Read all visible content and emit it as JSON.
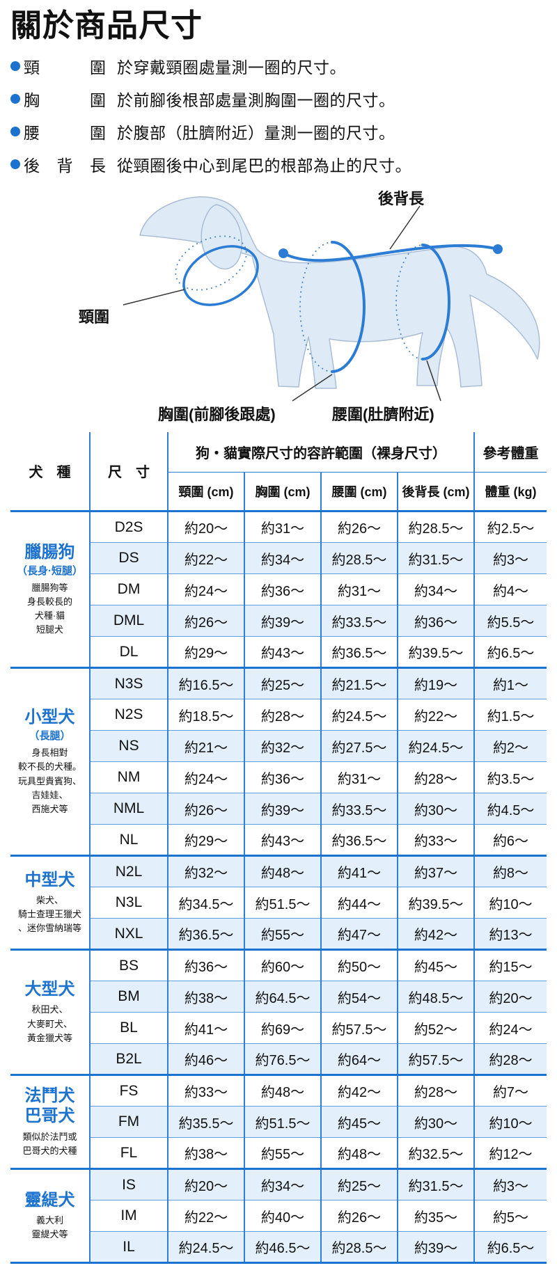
{
  "page": {
    "title": "關於商品尺寸"
  },
  "colors": {
    "accent": "#1b72cf",
    "table_line": "#2e7fd6",
    "row_shade": "#e3f0fb",
    "dog_fill": "#dfeaf7",
    "dog_outline": "#a9bdd4",
    "measure_line": "#2b7cd4"
  },
  "legend": {
    "items": [
      {
        "term": "頸圍",
        "desc": "於穿戴頸圈處量測一圈的尺寸。"
      },
      {
        "term": "胸圍",
        "desc": "於前腳後根部處量測胸圍一圈的尺寸。"
      },
      {
        "term": "腰圍",
        "desc": "於腹部（肚臍附近）量測一圈的尺寸。"
      },
      {
        "term": "後背長",
        "desc": "從頸圈後中心到尾巴的根部為止的尺寸。"
      }
    ]
  },
  "diagram": {
    "labels": {
      "back_length": "後背長",
      "neck": "頸圍",
      "chest": "胸圍(前腳後跟處)",
      "waist": "腰圍(肚臍附近)"
    }
  },
  "table": {
    "header": {
      "breed": "犬　種",
      "size": "尺　寸",
      "range_group": "狗・貓實際尺寸的容許範圍（裸身尺寸）",
      "weight_group": "參考體重",
      "columns": [
        "頸圍 (cm)",
        "胸圍 (cm)",
        "腰圍 (cm)",
        "後背長 (cm)",
        "體重 (kg)"
      ]
    },
    "groups": [
      {
        "name_lines": [
          "臘腸狗"
        ],
        "sub": "（長身·短腿）",
        "note_lines": [
          "臘腸狗等",
          "身長較長的",
          "犬種·貓",
          "短腿犬"
        ],
        "rows": [
          {
            "size": "D2S",
            "shaded": false,
            "values": [
              "約20～",
              "約31～",
              "約26～",
              "約28.5～",
              "約2.5～"
            ]
          },
          {
            "size": "DS",
            "shaded": true,
            "values": [
              "約22～",
              "約34～",
              "約28.5～",
              "約31.5～",
              "約3～"
            ]
          },
          {
            "size": "DM",
            "shaded": false,
            "values": [
              "約24～",
              "約36～",
              "約31～",
              "約34～",
              "約4～"
            ]
          },
          {
            "size": "DML",
            "shaded": true,
            "values": [
              "約26～",
              "約39～",
              "約33.5～",
              "約36～",
              "約5.5～"
            ]
          },
          {
            "size": "DL",
            "shaded": false,
            "values": [
              "約29～",
              "約43～",
              "約36.5～",
              "約39.5～",
              "約6.5～"
            ]
          }
        ]
      },
      {
        "name_lines": [
          "小型犬"
        ],
        "sub": "（長腿）",
        "note_lines": [
          "身長相對",
          "較不長的犬種。",
          "玩具型貴賓狗、",
          "吉娃娃、",
          "西施犬等"
        ],
        "rows": [
          {
            "size": "N3S",
            "shaded": true,
            "values": [
              "約16.5～",
              "約25～",
              "約21.5～",
              "約19～",
              "約1～"
            ]
          },
          {
            "size": "N2S",
            "shaded": false,
            "values": [
              "約18.5～",
              "約28～",
              "約24.5～",
              "約22～",
              "約1.5～"
            ]
          },
          {
            "size": "NS",
            "shaded": true,
            "values": [
              "約21～",
              "約32～",
              "約27.5～",
              "約24.5～",
              "約2～"
            ]
          },
          {
            "size": "NM",
            "shaded": false,
            "values": [
              "約24～",
              "約36～",
              "約31～",
              "約28～",
              "約3.5～"
            ]
          },
          {
            "size": "NML",
            "shaded": true,
            "values": [
              "約26～",
              "約39～",
              "約33.5～",
              "約30～",
              "約4.5～"
            ]
          },
          {
            "size": "NL",
            "shaded": false,
            "values": [
              "約29～",
              "約43～",
              "約36.5～",
              "約33～",
              "約6～"
            ]
          }
        ]
      },
      {
        "name_lines": [
          "中型犬"
        ],
        "sub": "",
        "note_lines": [
          "柴犬、",
          "騎士查理王獵犬",
          "、迷你雪納瑞等"
        ],
        "rows": [
          {
            "size": "N2L",
            "shaded": true,
            "values": [
              "約32～",
              "約48～",
              "約41～",
              "約37～",
              "約8～"
            ]
          },
          {
            "size": "N3L",
            "shaded": false,
            "values": [
              "約34.5～",
              "約51.5～",
              "約44～",
              "約39.5～",
              "約10～"
            ]
          },
          {
            "size": "NXL",
            "shaded": true,
            "values": [
              "約36.5～",
              "約55～",
              "約47～",
              "約42～",
              "約13～"
            ]
          }
        ]
      },
      {
        "name_lines": [
          "大型犬"
        ],
        "sub": "",
        "note_lines": [
          "秋田犬、",
          "大麥町犬、",
          "黃金獵犬等"
        ],
        "rows": [
          {
            "size": "BS",
            "shaded": false,
            "values": [
              "約36～",
              "約60～",
              "約50～",
              "約45～",
              "約15～"
            ]
          },
          {
            "size": "BM",
            "shaded": true,
            "values": [
              "約38～",
              "約64.5～",
              "約54～",
              "約48.5～",
              "約20～"
            ]
          },
          {
            "size": "BL",
            "shaded": false,
            "values": [
              "約41～",
              "約69～",
              "約57.5～",
              "約52～",
              "約24～"
            ]
          },
          {
            "size": "B2L",
            "shaded": true,
            "values": [
              "約46～",
              "約76.5～",
              "約64～",
              "約57.5～",
              "約28～"
            ]
          }
        ]
      },
      {
        "name_lines": [
          "法鬥犬",
          "巴哥犬"
        ],
        "sub": "",
        "note_lines": [
          "類似於法鬥或",
          "巴哥犬的犬種"
        ],
        "rows": [
          {
            "size": "FS",
            "shaded": false,
            "values": [
              "約33～",
              "約48～",
              "約42～",
              "約28～",
              "約7～"
            ]
          },
          {
            "size": "FM",
            "shaded": true,
            "values": [
              "約35.5～",
              "約51.5～",
              "約45～",
              "約30～",
              "約10～"
            ]
          },
          {
            "size": "FL",
            "shaded": false,
            "values": [
              "約38～",
              "約55～",
              "約48～",
              "約32.5～",
              "約12～"
            ]
          }
        ]
      },
      {
        "name_lines": [
          "靈緹犬"
        ],
        "sub": "",
        "note_lines": [
          "義大利",
          "靈緹犬等"
        ],
        "rows": [
          {
            "size": "IS",
            "shaded": true,
            "values": [
              "約20～",
              "約34～",
              "約25～",
              "約31.5～",
              "約3～"
            ]
          },
          {
            "size": "IM",
            "shaded": false,
            "values": [
              "約22～",
              "約40～",
              "約26～",
              "約35～",
              "約5～"
            ]
          },
          {
            "size": "IL",
            "shaded": true,
            "values": [
              "約24.5～",
              "約46.5～",
              "約28.5～",
              "約39～",
              "約6.5～"
            ]
          }
        ]
      }
    ]
  }
}
